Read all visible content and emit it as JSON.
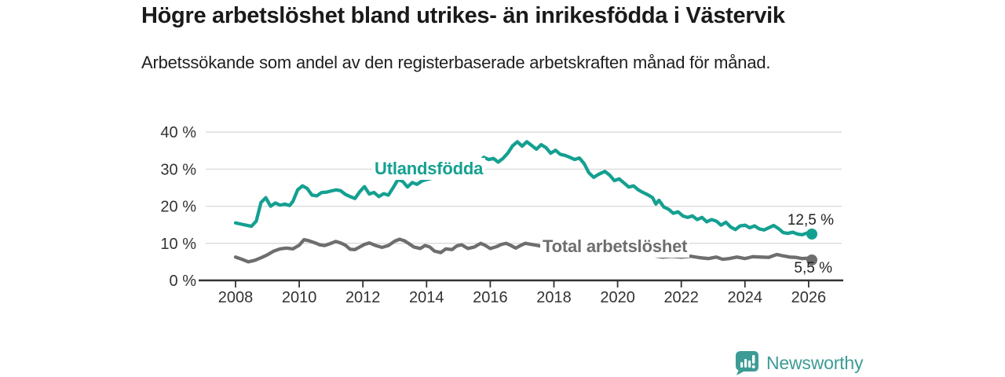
{
  "header": {
    "title": "Högre arbetslöshet bland utrikes- än inrikesfödda i Västervik",
    "subtitle": "Arbetssökande som andel av den registerbaserade arbetskraften månad för månad."
  },
  "chart_data": {
    "type": "line",
    "title": "Högre arbetslöshet bland utrikes- än inrikesfödda i Västervik",
    "subtitle": "Arbetssökande som andel av den registerbaserade arbetskraften månad för månad.",
    "xlabel": "",
    "ylabel": "",
    "x_ticks": [
      2008,
      2010,
      2012,
      2014,
      2016,
      2018,
      2020,
      2022,
      2024,
      2026
    ],
    "y_ticks": [
      0,
      10,
      20,
      30,
      40
    ],
    "y_tick_suffix": " %",
    "ylim": [
      0,
      40
    ],
    "xlim": [
      2007,
      2027
    ],
    "grid": true,
    "legend_position": "inline-labels",
    "colors": {
      "accent_teal": "#14a091",
      "series_gray": "#6e6e6e",
      "gridline": "#d9d9d9",
      "axis": "#333333",
      "text": "#1a1a1a"
    },
    "series": [
      {
        "name": "Utlandsfödda",
        "color": "#14a091",
        "end_value": 12.5,
        "end_label": "12,5 %",
        "points": [
          [
            2008.0,
            15.5
          ],
          [
            2008.17,
            15.2
          ],
          [
            2008.33,
            14.9
          ],
          [
            2008.5,
            14.6
          ],
          [
            2008.65,
            16.0
          ],
          [
            2008.8,
            21.0
          ],
          [
            2008.95,
            22.3
          ],
          [
            2009.1,
            20.0
          ],
          [
            2009.25,
            20.9
          ],
          [
            2009.4,
            20.3
          ],
          [
            2009.55,
            20.6
          ],
          [
            2009.7,
            20.2
          ],
          [
            2009.8,
            21.3
          ],
          [
            2009.95,
            24.4
          ],
          [
            2010.1,
            25.5
          ],
          [
            2010.25,
            24.8
          ],
          [
            2010.4,
            23.0
          ],
          [
            2010.55,
            22.8
          ],
          [
            2010.7,
            23.7
          ],
          [
            2010.85,
            23.8
          ],
          [
            2011.0,
            24.1
          ],
          [
            2011.15,
            24.4
          ],
          [
            2011.3,
            24.2
          ],
          [
            2011.45,
            23.2
          ],
          [
            2011.6,
            22.6
          ],
          [
            2011.75,
            22.1
          ],
          [
            2011.9,
            23.9
          ],
          [
            2012.05,
            25.3
          ],
          [
            2012.2,
            23.3
          ],
          [
            2012.35,
            23.7
          ],
          [
            2012.5,
            22.6
          ],
          [
            2012.65,
            23.4
          ],
          [
            2012.8,
            23.0
          ],
          [
            2012.95,
            25.0
          ],
          [
            2013.1,
            27.2
          ],
          [
            2013.25,
            26.7
          ],
          [
            2013.4,
            25.2
          ],
          [
            2013.55,
            26.4
          ],
          [
            2013.7,
            25.9
          ],
          [
            2013.85,
            26.8
          ],
          [
            2014.0,
            27.2
          ],
          [
            2014.2,
            27.6
          ],
          [
            2014.4,
            28.1
          ],
          [
            2014.6,
            28.4
          ],
          [
            2014.8,
            29.0
          ],
          [
            2015.0,
            29.7
          ],
          [
            2015.2,
            30.4
          ],
          [
            2015.4,
            31.0
          ],
          [
            2015.6,
            31.6
          ],
          [
            2015.8,
            33.2
          ],
          [
            2015.95,
            32.6
          ],
          [
            2016.1,
            32.9
          ],
          [
            2016.25,
            31.9
          ],
          [
            2016.4,
            32.9
          ],
          [
            2016.55,
            34.3
          ],
          [
            2016.7,
            36.3
          ],
          [
            2016.85,
            37.4
          ],
          [
            2017.0,
            36.2
          ],
          [
            2017.15,
            37.4
          ],
          [
            2017.3,
            36.4
          ],
          [
            2017.45,
            35.4
          ],
          [
            2017.6,
            36.6
          ],
          [
            2017.75,
            35.8
          ],
          [
            2017.9,
            34.3
          ],
          [
            2018.05,
            35.1
          ],
          [
            2018.2,
            34.0
          ],
          [
            2018.35,
            33.7
          ],
          [
            2018.5,
            33.2
          ],
          [
            2018.65,
            32.6
          ],
          [
            2018.8,
            33.0
          ],
          [
            2018.95,
            31.5
          ],
          [
            2019.1,
            29.0
          ],
          [
            2019.25,
            27.8
          ],
          [
            2019.4,
            28.6
          ],
          [
            2019.6,
            29.4
          ],
          [
            2019.75,
            28.4
          ],
          [
            2019.9,
            26.9
          ],
          [
            2020.05,
            27.4
          ],
          [
            2020.2,
            26.3
          ],
          [
            2020.35,
            25.2
          ],
          [
            2020.5,
            25.5
          ],
          [
            2020.65,
            24.4
          ],
          [
            2020.8,
            23.7
          ],
          [
            2020.95,
            23.1
          ],
          [
            2021.1,
            22.3
          ],
          [
            2021.2,
            20.6
          ],
          [
            2021.3,
            21.6
          ],
          [
            2021.45,
            19.8
          ],
          [
            2021.6,
            19.2
          ],
          [
            2021.75,
            18.1
          ],
          [
            2021.9,
            18.5
          ],
          [
            2022.05,
            17.4
          ],
          [
            2022.2,
            17.0
          ],
          [
            2022.35,
            17.4
          ],
          [
            2022.5,
            16.4
          ],
          [
            2022.65,
            17.0
          ],
          [
            2022.8,
            15.8
          ],
          [
            2022.95,
            16.4
          ],
          [
            2023.1,
            16.0
          ],
          [
            2023.25,
            14.9
          ],
          [
            2023.4,
            15.7
          ],
          [
            2023.55,
            14.4
          ],
          [
            2023.7,
            13.7
          ],
          [
            2023.85,
            14.7
          ],
          [
            2024.0,
            14.9
          ],
          [
            2024.15,
            14.2
          ],
          [
            2024.3,
            14.7
          ],
          [
            2024.45,
            13.9
          ],
          [
            2024.6,
            13.6
          ],
          [
            2024.75,
            14.2
          ],
          [
            2024.9,
            14.8
          ],
          [
            2025.05,
            14.0
          ],
          [
            2025.2,
            12.9
          ],
          [
            2025.35,
            12.7
          ],
          [
            2025.5,
            13.0
          ],
          [
            2025.65,
            12.5
          ],
          [
            2025.8,
            12.3
          ],
          [
            2025.95,
            12.8
          ],
          [
            2026.1,
            12.5
          ]
        ]
      },
      {
        "name": "Total arbetslöshet",
        "color": "#6e6e6e",
        "end_value": 5.5,
        "end_label": "5,5 %",
        "points": [
          [
            2008.0,
            6.3
          ],
          [
            2008.2,
            5.7
          ],
          [
            2008.4,
            5.0
          ],
          [
            2008.6,
            5.4
          ],
          [
            2008.8,
            6.1
          ],
          [
            2009.0,
            6.9
          ],
          [
            2009.2,
            7.9
          ],
          [
            2009.4,
            8.5
          ],
          [
            2009.6,
            8.7
          ],
          [
            2009.8,
            8.5
          ],
          [
            2010.0,
            9.5
          ],
          [
            2010.15,
            11.0
          ],
          [
            2010.3,
            10.7
          ],
          [
            2010.5,
            10.1
          ],
          [
            2010.65,
            9.6
          ],
          [
            2010.8,
            9.4
          ],
          [
            2011.0,
            10.0
          ],
          [
            2011.15,
            10.5
          ],
          [
            2011.3,
            10.1
          ],
          [
            2011.45,
            9.5
          ],
          [
            2011.6,
            8.4
          ],
          [
            2011.75,
            8.3
          ],
          [
            2011.9,
            9.0
          ],
          [
            2012.05,
            9.7
          ],
          [
            2012.2,
            10.1
          ],
          [
            2012.4,
            9.4
          ],
          [
            2012.6,
            8.9
          ],
          [
            2012.8,
            9.4
          ],
          [
            2013.0,
            10.6
          ],
          [
            2013.15,
            11.1
          ],
          [
            2013.3,
            10.7
          ],
          [
            2013.45,
            9.9
          ],
          [
            2013.6,
            9.0
          ],
          [
            2013.8,
            8.6
          ],
          [
            2013.95,
            9.4
          ],
          [
            2014.1,
            9.0
          ],
          [
            2014.25,
            7.9
          ],
          [
            2014.45,
            7.5
          ],
          [
            2014.6,
            8.5
          ],
          [
            2014.8,
            8.3
          ],
          [
            2014.95,
            9.3
          ],
          [
            2015.1,
            9.6
          ],
          [
            2015.3,
            8.6
          ],
          [
            2015.5,
            9.0
          ],
          [
            2015.7,
            10.0
          ],
          [
            2015.85,
            9.4
          ],
          [
            2016.0,
            8.6
          ],
          [
            2016.2,
            9.1
          ],
          [
            2016.35,
            9.7
          ],
          [
            2016.5,
            10.0
          ],
          [
            2016.65,
            9.4
          ],
          [
            2016.8,
            8.7
          ],
          [
            2016.95,
            9.4
          ],
          [
            2017.1,
            10.0
          ],
          [
            2017.3,
            9.7
          ],
          [
            2017.5,
            9.4
          ],
          [
            2017.7,
            9.0
          ],
          [
            2018.0,
            8.7
          ],
          [
            2018.5,
            8.3
          ],
          [
            2019.0,
            7.9
          ],
          [
            2019.5,
            7.6
          ],
          [
            2020.0,
            7.9
          ],
          [
            2020.5,
            7.4
          ],
          [
            2021.0,
            6.8
          ],
          [
            2021.4,
            6.3
          ],
          [
            2021.7,
            6.5
          ],
          [
            2022.0,
            6.3
          ],
          [
            2022.3,
            6.5
          ],
          [
            2022.6,
            6.1
          ],
          [
            2022.85,
            5.9
          ],
          [
            2023.1,
            6.3
          ],
          [
            2023.3,
            5.7
          ],
          [
            2023.5,
            5.9
          ],
          [
            2023.75,
            6.3
          ],
          [
            2024.0,
            5.9
          ],
          [
            2024.25,
            6.4
          ],
          [
            2024.5,
            6.3
          ],
          [
            2024.75,
            6.2
          ],
          [
            2025.0,
            7.0
          ],
          [
            2025.2,
            6.6
          ],
          [
            2025.4,
            6.3
          ],
          [
            2025.6,
            6.2
          ],
          [
            2025.8,
            5.9
          ],
          [
            2026.0,
            6.0
          ],
          [
            2026.1,
            5.5
          ]
        ]
      }
    ]
  },
  "footer": {
    "brand": "Newsworthy",
    "logo_color": "#3d9b95"
  }
}
